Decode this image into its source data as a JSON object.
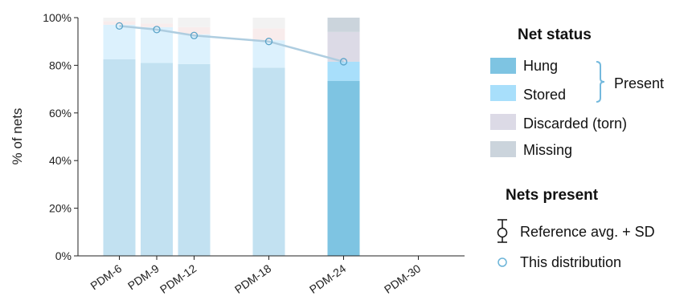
{
  "chart_data": {
    "type": "bar",
    "stacked": true,
    "ylabel": "% of nets",
    "ylim": [
      0,
      100
    ],
    "yticks": [
      "0%",
      "20%",
      "40%",
      "60%",
      "80%",
      "100%"
    ],
    "categories": [
      "PDM-6",
      "PDM-9",
      "PDM-12",
      "PDM-18",
      "PDM-24",
      "PDM-30"
    ],
    "x": [
      6,
      9,
      12,
      18,
      24,
      30
    ],
    "series": [
      {
        "name": "Hung",
        "color": "#7ec4e2",
        "faded_color": "#c2e1f1",
        "values": [
          82.5,
          81,
          80.5,
          79,
          73.5,
          null
        ]
      },
      {
        "name": "Stored",
        "color": "#a8dffb",
        "faded_color": "#dcf1fd",
        "values": [
          14.5,
          15,
          12.5,
          11.5,
          8,
          null
        ]
      },
      {
        "name": "Discarded (torn)",
        "color": "#dcdae6",
        "faded_color": "#f8ecec",
        "values": [
          1.5,
          1.5,
          3,
          5,
          12.5,
          null
        ]
      },
      {
        "name": "Missing",
        "color": "#cbd4dc",
        "faded_color": "#f2f2f2",
        "values": [
          1.5,
          2.5,
          4,
          4.5,
          6,
          null
        ]
      }
    ],
    "highlighted_category": "PDM-24",
    "line": {
      "name": "This distribution",
      "color": "#aecde0",
      "marker": "open-circle",
      "values": [
        96.5,
        95,
        92.5,
        90,
        81.5,
        null
      ]
    },
    "legend": {
      "title_status": "Net status",
      "present_label": "Present",
      "title_present": "Nets present",
      "reference_label": "Reference avg. + SD",
      "this_label": "This distribution",
      "position": "right"
    },
    "grid": false
  }
}
